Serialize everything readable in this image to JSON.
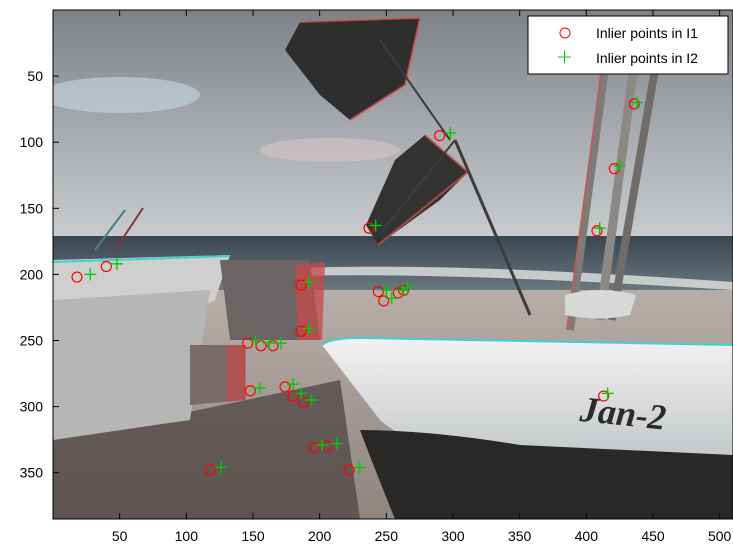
{
  "figure": {
    "background": "#ffffff"
  },
  "axes": {
    "x_ticks": [
      "50",
      "100",
      "150",
      "200",
      "250",
      "300",
      "350",
      "400",
      "450",
      "500"
    ],
    "y_ticks": [
      "50",
      "100",
      "150",
      "200",
      "250",
      "300",
      "350"
    ]
  },
  "legend": {
    "items": [
      {
        "label": "Inlier points in I1",
        "marker": "circle",
        "color": "#ff0000"
      },
      {
        "label": "Inlier points in I2",
        "marker": "plus",
        "color": "#00cc00"
      }
    ]
  },
  "image": {
    "annotation_text": "Jan-2"
  },
  "chart_data": {
    "type": "scatter",
    "xlim": [
      0,
      510
    ],
    "ylim": [
      0,
      385
    ],
    "y_direction": "reversed",
    "grid": false,
    "legend_position": "top-right",
    "x_ticks": [
      50,
      100,
      150,
      200,
      250,
      300,
      350,
      400,
      450,
      500
    ],
    "y_ticks": [
      50,
      100,
      150,
      200,
      250,
      300,
      350
    ],
    "background": "stereo anaglyph photograph of boats on a beach",
    "series": [
      {
        "name": "Inlier points in I1",
        "marker": "circle",
        "color": "#ff0000",
        "x": [
          18,
          40,
          436,
          290,
          421,
          408,
          237,
          186,
          244,
          248,
          259,
          263,
          146,
          156,
          165,
          186,
          148,
          174,
          180,
          188,
          196,
          206,
          222,
          118,
          413
        ],
        "y": [
          202,
          194,
          71,
          95,
          120,
          167,
          165,
          208,
          213,
          220,
          214,
          212,
          252,
          254,
          254,
          243,
          288,
          285,
          292,
          297,
          331,
          330,
          348,
          348,
          292
        ]
      },
      {
        "name": "Inlier points in I2",
        "marker": "plus",
        "color": "#00cc00",
        "x": [
          28,
          48,
          438,
          298,
          425,
          410,
          242,
          192,
          250,
          254,
          262,
          266,
          152,
          162,
          171,
          192,
          155,
          180,
          186,
          194,
          202,
          213,
          230,
          126,
          416
        ],
        "y": [
          200,
          192,
          70,
          93,
          118,
          165,
          163,
          206,
          212,
          218,
          212,
          210,
          250,
          252,
          252,
          241,
          286,
          283,
          290,
          295,
          329,
          328,
          346,
          346,
          290
        ]
      }
    ]
  }
}
